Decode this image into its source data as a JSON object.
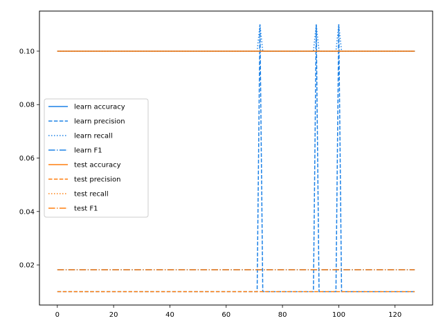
{
  "chart_data": {
    "type": "line",
    "title": "",
    "xlabel": "",
    "ylabel": "",
    "xlim": [
      -6.35,
      133.35
    ],
    "ylim": [
      0.005,
      0.115
    ],
    "x_ticks": [
      0,
      20,
      40,
      60,
      80,
      100,
      120
    ],
    "y_ticks": [
      0.02,
      0.04,
      0.06,
      0.08,
      0.1
    ],
    "x_tick_labels": [
      "0",
      "20",
      "40",
      "60",
      "80",
      "100",
      "120"
    ],
    "y_tick_labels": [
      "0.02",
      "0.04",
      "0.06",
      "0.08",
      "0.10"
    ],
    "grid": false,
    "legend_position": "center-left",
    "colors": {
      "learn": "#1a80e6",
      "test": "#ff7f0e"
    },
    "series": [
      {
        "name": "learn accuracy",
        "color": "#1a80e6",
        "dash": "solid",
        "points": [
          [
            0,
            0.1
          ],
          [
            127,
            0.1
          ]
        ]
      },
      {
        "name": "learn precision",
        "color": "#1a80e6",
        "dash": "dashed",
        "points": [
          [
            0,
            0.01
          ],
          [
            71,
            0.01
          ],
          [
            72,
            0.11
          ],
          [
            73,
            0.01
          ],
          [
            91,
            0.01
          ],
          [
            92,
            0.11
          ],
          [
            93,
            0.01
          ],
          [
            99,
            0.01
          ],
          [
            100,
            0.11
          ],
          [
            101,
            0.01
          ],
          [
            127,
            0.01
          ]
        ]
      },
      {
        "name": "learn recall",
        "color": "#1a80e6",
        "dash": "dotted",
        "points": [
          [
            0,
            0.1
          ],
          [
            71,
            0.1
          ],
          [
            72,
            0.11
          ],
          [
            73,
            0.1
          ],
          [
            91,
            0.1
          ],
          [
            92,
            0.11
          ],
          [
            93,
            0.1
          ],
          [
            99,
            0.1
          ],
          [
            100,
            0.11
          ],
          [
            101,
            0.1
          ],
          [
            127,
            0.1
          ]
        ]
      },
      {
        "name": "learn F1",
        "color": "#1a80e6",
        "dash": "dashdot",
        "points": [
          [
            0,
            0.0182
          ],
          [
            127,
            0.0182
          ]
        ]
      },
      {
        "name": "test accuracy",
        "color": "#ff7f0e",
        "dash": "solid",
        "points": [
          [
            0,
            0.1
          ],
          [
            127,
            0.1
          ]
        ]
      },
      {
        "name": "test precision",
        "color": "#ff7f0e",
        "dash": "dashed",
        "points": [
          [
            0,
            0.01
          ],
          [
            127,
            0.01
          ]
        ]
      },
      {
        "name": "test recall",
        "color": "#ff7f0e",
        "dash": "dotted",
        "points": [
          [
            0,
            0.1
          ],
          [
            127,
            0.1
          ]
        ]
      },
      {
        "name": "test F1",
        "color": "#ff7f0e",
        "dash": "dashdot",
        "points": [
          [
            0,
            0.0182
          ],
          [
            127,
            0.0182
          ]
        ]
      }
    ]
  }
}
